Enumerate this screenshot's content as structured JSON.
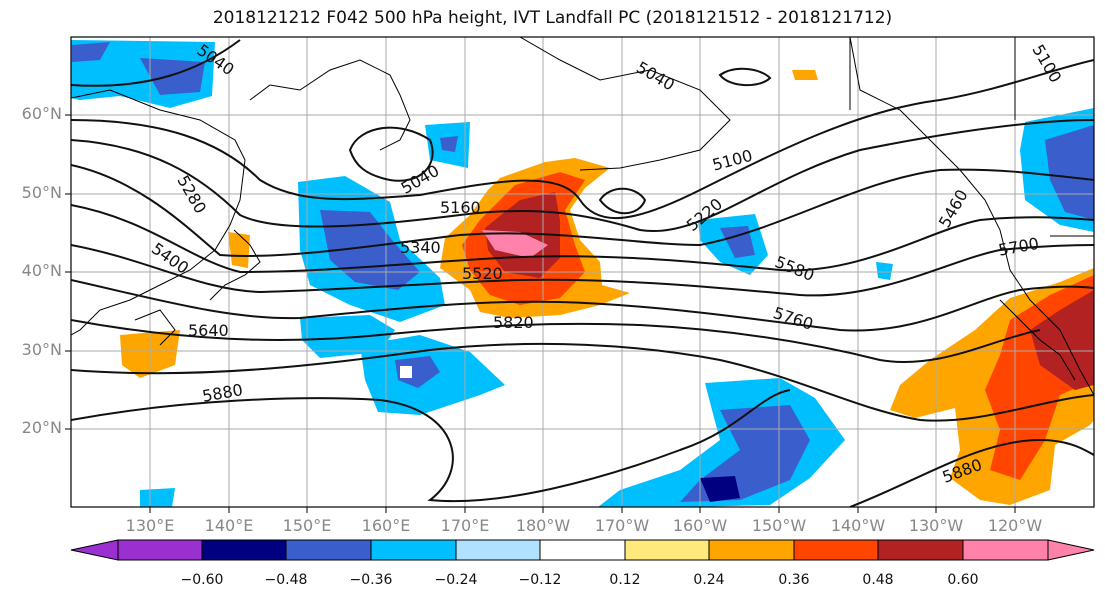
{
  "title": "2018121212 F042 500 hPa height, IVT Landfall PC (2018121512 - 2018121712)",
  "lat_labels": [
    "60°N",
    "50°N",
    "40°N",
    "30°N",
    "20°N"
  ],
  "lon_labels": [
    "130°E",
    "140°E",
    "150°E",
    "160°E",
    "170°E",
    "180°W",
    "170°W",
    "160°W",
    "150°W",
    "140°W",
    "130°W",
    "120°W"
  ],
  "contour_labels": [
    "5040",
    "5040",
    "5040",
    "5100",
    "5160",
    "5220",
    "5280",
    "5340",
    "5400",
    "5460",
    "5520",
    "5580",
    "5640",
    "5700",
    "5760",
    "5820",
    "5880",
    "5880",
    "5100"
  ],
  "colorbar": {
    "ticks": [
      "−0.60",
      "−0.48",
      "−0.36",
      "−0.24",
      "−0.12",
      "0.12",
      "0.24",
      "0.36",
      "0.48",
      "0.60"
    ],
    "colors": [
      "#9b30d0",
      "#000080",
      "#3a5fcd",
      "#00bfff",
      "#b0e2ff",
      "#ffffff",
      "#ffe87c",
      "#ffa500",
      "#ff4500",
      "#b22222",
      "#ff82ab"
    ]
  }
}
